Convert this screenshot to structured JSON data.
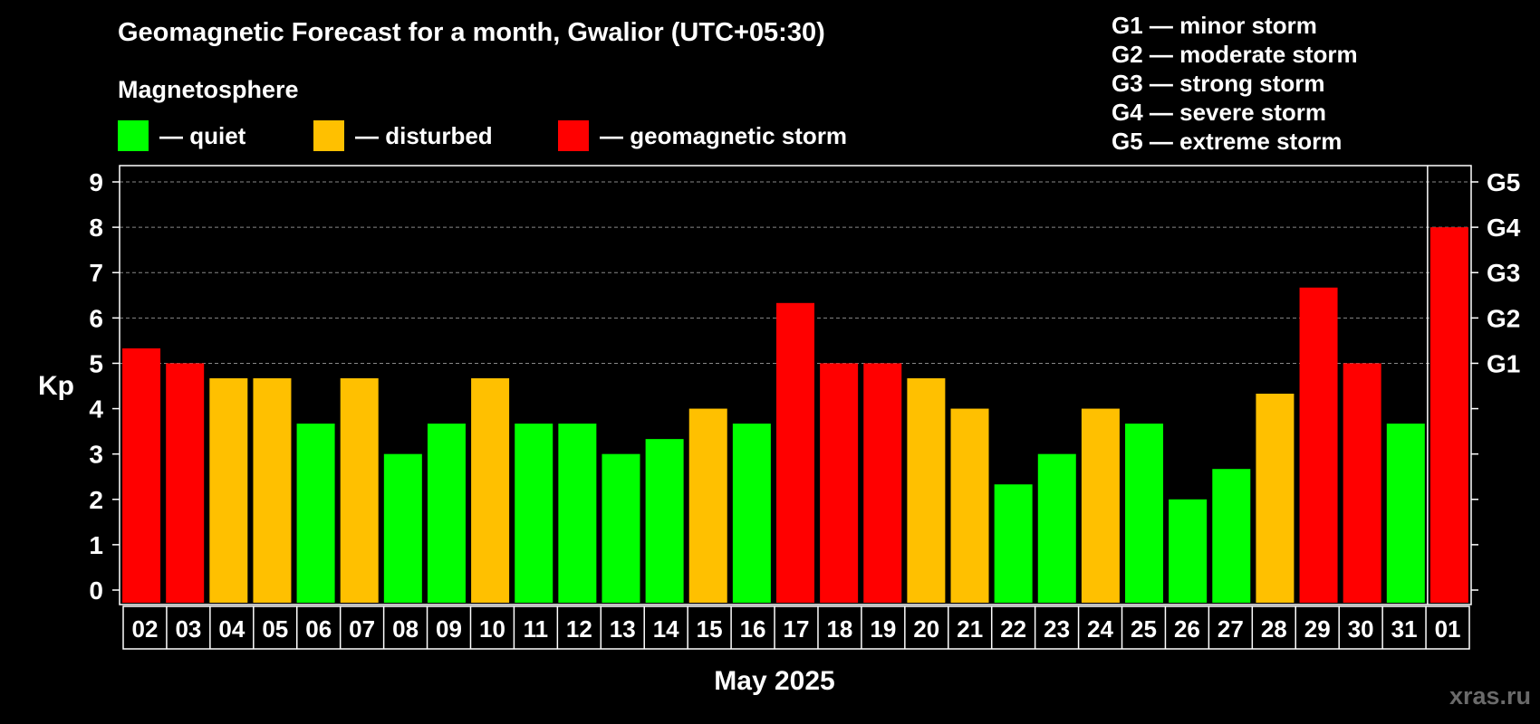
{
  "title": "Geomagnetic Forecast for a month, Gwalior (UTC+05:30)",
  "magnetosphere_label": "Magnetosphere",
  "legend": [
    {
      "label": "— quiet",
      "color": "#00ff00"
    },
    {
      "label": "— disturbed",
      "color": "#ffc000"
    },
    {
      "label": "— geomagnetic storm",
      "color": "#ff0000"
    }
  ],
  "g_scale_legend": [
    "G1 — minor storm",
    "G2 — moderate storm",
    "G3 — strong storm",
    "G4 — severe storm",
    "G5 — extreme storm"
  ],
  "watermark": "xras.ru",
  "colors": {
    "quiet": "#00ff00",
    "disturbed": "#ffc000",
    "storm": "#ff0000"
  },
  "chart_data": {
    "type": "bar",
    "xlabel": "May 2025",
    "ylabel": "Kp",
    "ylim": [
      0,
      9
    ],
    "yticks": [
      0,
      1,
      2,
      3,
      4,
      5,
      6,
      7,
      8,
      9
    ],
    "grid": "dashed horizontal lines at Kp 5–9",
    "right_axis_labels": [
      {
        "kp": 5,
        "label": "G1"
      },
      {
        "kp": 6,
        "label": "G2"
      },
      {
        "kp": 7,
        "label": "G3"
      },
      {
        "kp": 8,
        "label": "G4"
      },
      {
        "kp": 9,
        "label": "G5"
      }
    ],
    "categories": [
      "02",
      "03",
      "04",
      "05",
      "06",
      "07",
      "08",
      "09",
      "10",
      "11",
      "12",
      "13",
      "14",
      "15",
      "16",
      "17",
      "18",
      "19",
      "20",
      "21",
      "22",
      "23",
      "24",
      "25",
      "26",
      "27",
      "28",
      "29",
      "30",
      "31",
      "01"
    ],
    "values": [
      5.33,
      5,
      4.67,
      4.67,
      3.67,
      4.67,
      3,
      3.67,
      4.67,
      3.67,
      3.67,
      3,
      3.33,
      4,
      3.67,
      6.33,
      5,
      5,
      4.67,
      4,
      2.33,
      3,
      4,
      3.67,
      2,
      2.67,
      4.33,
      6.67,
      5,
      3.67,
      8
    ],
    "levels": [
      "storm",
      "storm",
      "disturbed",
      "disturbed",
      "quiet",
      "disturbed",
      "quiet",
      "quiet",
      "disturbed",
      "quiet",
      "quiet",
      "quiet",
      "quiet",
      "disturbed",
      "quiet",
      "storm",
      "storm",
      "storm",
      "disturbed",
      "disturbed",
      "quiet",
      "quiet",
      "disturbed",
      "quiet",
      "quiet",
      "quiet",
      "disturbed",
      "storm",
      "storm",
      "quiet",
      "storm"
    ],
    "month_separator_before": "01"
  }
}
